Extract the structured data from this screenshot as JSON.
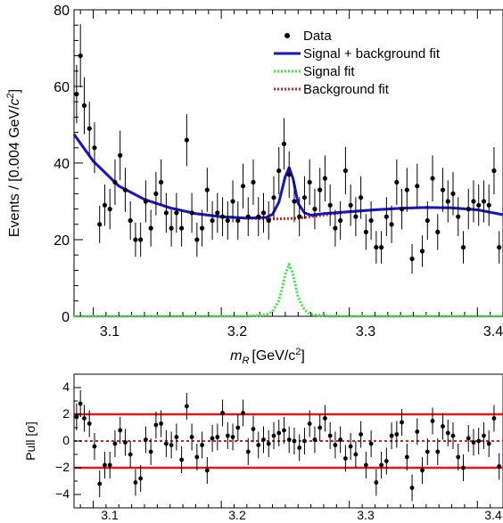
{
  "chart_data": [
    {
      "type": "scatter",
      "name": "main-fit-plot",
      "xlabel_var": "m",
      "xlabel_sub": "R",
      "xlabel_unit": "[GeV/c",
      "xlabel_sup": "2",
      "xlabel_close": "]",
      "ylabel_main": "Events / [0.004 GeV/",
      "ylabel_c": "c",
      "ylabel_sup": "2",
      "ylabel_close": "]",
      "xlim": [
        3.085,
        3.42
      ],
      "ylim": [
        0,
        80
      ],
      "x_tick_labels": [
        "3.1",
        "3.2",
        "3.3",
        "3.4"
      ],
      "y_tick_labels": [
        "0",
        "20",
        "40",
        "60",
        "80"
      ],
      "legend": {
        "position": "top-right",
        "entries": [
          {
            "label": "Data",
            "style": "marker",
            "color": "#000000"
          },
          {
            "label": "Signal + background fit",
            "style": "solid",
            "color": "#1515c8"
          },
          {
            "label": "Signal fit",
            "style": "dotted",
            "color": "#33ee33"
          },
          {
            "label": "Background fit",
            "style": "dotted",
            "color": "#e01818"
          }
        ]
      },
      "data": {
        "x": [
          3.087,
          3.09,
          3.093,
          3.097,
          3.101,
          3.105,
          3.109,
          3.113,
          3.117,
          3.121,
          3.125,
          3.129,
          3.133,
          3.137,
          3.141,
          3.145,
          3.149,
          3.153,
          3.157,
          3.161,
          3.165,
          3.169,
          3.173,
          3.177,
          3.181,
          3.185,
          3.189,
          3.193,
          3.197,
          3.201,
          3.205,
          3.209,
          3.213,
          3.217,
          3.221,
          3.225,
          3.229,
          3.233,
          3.237,
          3.241,
          3.245,
          3.249,
          3.253,
          3.257,
          3.261,
          3.265,
          3.269,
          3.273,
          3.277,
          3.281,
          3.285,
          3.289,
          3.293,
          3.297,
          3.301,
          3.305,
          3.309,
          3.313,
          3.317,
          3.321,
          3.325,
          3.329,
          3.333,
          3.337,
          3.341,
          3.345,
          3.349,
          3.353,
          3.357,
          3.361,
          3.365,
          3.369,
          3.373,
          3.377,
          3.381,
          3.385,
          3.389,
          3.393,
          3.397,
          3.401,
          3.405,
          3.409,
          3.413,
          3.417
        ],
        "y": [
          58,
          68,
          55,
          49,
          44,
          24,
          29,
          28,
          35,
          42,
          33,
          25,
          20,
          20,
          30,
          23,
          32,
          35,
          27,
          23,
          27,
          23,
          46,
          27,
          20,
          23,
          33,
          25,
          27,
          26,
          25,
          30,
          25,
          34,
          26,
          35,
          26,
          27,
          25,
          31,
          38,
          45,
          37,
          30,
          26,
          31,
          35,
          28,
          33,
          36,
          29,
          23,
          25,
          38,
          29,
          26,
          31,
          22,
          25,
          18,
          18,
          26,
          24,
          35,
          28,
          33,
          15,
          34,
          17,
          25,
          36,
          22,
          33,
          30,
          32,
          26,
          18,
          28,
          30,
          29,
          30,
          29,
          38,
          18
        ]
      },
      "signal_plus_background": {
        "x": [
          3.085,
          3.1,
          3.12,
          3.14,
          3.16,
          3.18,
          3.2,
          3.22,
          3.235,
          3.24,
          3.245,
          3.25,
          3.253,
          3.256,
          3.26,
          3.265,
          3.27,
          3.28,
          3.3,
          3.32,
          3.34,
          3.36,
          3.38,
          3.4,
          3.42
        ],
        "y": [
          47.5,
          40.5,
          34,
          30.5,
          28.3,
          26.8,
          26,
          25.6,
          25.8,
          26.6,
          29.8,
          36.5,
          38.8,
          36,
          29.5,
          27,
          26.4,
          26.8,
          27.3,
          27.8,
          28.2,
          28.4,
          28.3,
          27.8,
          26.5
        ]
      },
      "background": {
        "x": [
          3.085,
          3.1,
          3.12,
          3.14,
          3.16,
          3.18,
          3.2,
          3.22,
          3.24,
          3.26,
          3.28,
          3.3,
          3.32,
          3.34,
          3.36,
          3.38,
          3.4,
          3.42
        ],
        "y": [
          47.5,
          40.5,
          34,
          30.5,
          28.3,
          26.8,
          26,
          25.6,
          25.4,
          25.6,
          26.4,
          27.3,
          27.8,
          28.2,
          28.4,
          28.3,
          27.8,
          26.5
        ]
      },
      "signal": {
        "x": [
          3.085,
          3.22,
          3.235,
          3.24,
          3.245,
          3.248,
          3.25,
          3.253,
          3.256,
          3.26,
          3.265,
          3.27,
          3.285,
          3.42
        ],
        "y": [
          0,
          0,
          0.4,
          1.2,
          4,
          8,
          11,
          13.6,
          11,
          5,
          1.6,
          0.5,
          0,
          0
        ]
      }
    },
    {
      "type": "scatter",
      "name": "pull-plot",
      "ylabel": "Pull [σ]",
      "xlim": [
        3.085,
        3.42
      ],
      "ylim": [
        -5,
        5
      ],
      "x_tick_labels": [
        "3.1",
        "3.2",
        "3.3",
        "3.4"
      ],
      "y_tick_labels": [
        "4",
        "2",
        "0",
        "−2",
        "−4"
      ],
      "reference_lines": [
        2,
        0,
        -2
      ],
      "data": {
        "x": [
          3.087,
          3.09,
          3.093,
          3.097,
          3.101,
          3.105,
          3.109,
          3.113,
          3.117,
          3.121,
          3.125,
          3.129,
          3.133,
          3.137,
          3.141,
          3.145,
          3.149,
          3.153,
          3.157,
          3.161,
          3.165,
          3.169,
          3.173,
          3.177,
          3.181,
          3.185,
          3.189,
          3.193,
          3.197,
          3.201,
          3.205,
          3.209,
          3.213,
          3.217,
          3.221,
          3.225,
          3.229,
          3.233,
          3.237,
          3.241,
          3.245,
          3.249,
          3.253,
          3.257,
          3.261,
          3.265,
          3.269,
          3.273,
          3.277,
          3.281,
          3.285,
          3.289,
          3.293,
          3.297,
          3.301,
          3.305,
          3.309,
          3.313,
          3.317,
          3.321,
          3.325,
          3.329,
          3.333,
          3.337,
          3.341,
          3.345,
          3.349,
          3.353,
          3.357,
          3.361,
          3.365,
          3.369,
          3.373,
          3.377,
          3.381,
          3.385,
          3.389,
          3.393,
          3.397,
          3.401,
          3.405,
          3.409,
          3.413,
          3.417
        ],
        "y": [
          1.8,
          2.8,
          1.7,
          1.3,
          -0.4,
          -3.2,
          -1.8,
          -1.8,
          -0.2,
          0.8,
          -0.1,
          -1.0,
          -3.1,
          -2.8,
          0.1,
          -0.8,
          1.2,
          1.3,
          -0.2,
          -0.3,
          0.3,
          -1.4,
          2.6,
          0.3,
          -1.2,
          -0.3,
          -2.2,
          0.2,
          0.3,
          2.1,
          0.4,
          0.3,
          1.0,
          2.1,
          -0.8,
          0.9,
          -0.3,
          0.1,
          -0.2,
          0.4,
          0.6,
          0.8,
          0.1,
          0.0,
          -0.5,
          0.0,
          1.3,
          0.1,
          1.0,
          1.7,
          0.4,
          -0.3,
          0.1,
          -1.3,
          -0.4,
          -1.0,
          0.5,
          -1.8,
          -0.2,
          -3.1,
          -1.8,
          -1.5,
          0.4,
          0.5,
          1.4,
          -1.2,
          -3.5,
          0.7,
          -2.2,
          -0.8,
          1.5,
          -0.8,
          1.1,
          0.6,
          0.4,
          -1.2,
          -2.0,
          0.2,
          -0.1,
          0.0,
          0.4,
          -0.2,
          1.7,
          -1.9
        ]
      }
    }
  ]
}
